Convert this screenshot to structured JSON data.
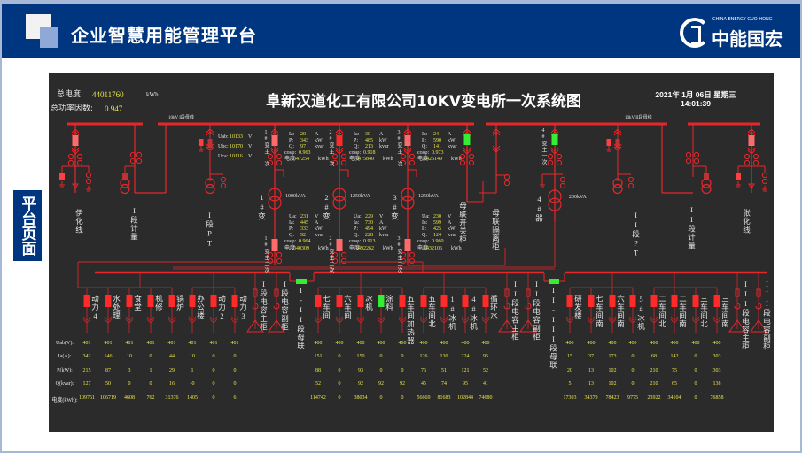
{
  "header": {
    "title": "企业智慧用能管理平台",
    "logo_text": "中能国宏",
    "logo_sub": "CHINA ENERGY GUO HONG"
  },
  "side_tab": {
    "label": "平台页面"
  },
  "colors": {
    "header_bg": "#003580",
    "panel_bg": "#2b2b2b",
    "bus": "#e8262a",
    "breaker_closed": "#ff2a2a",
    "breaker_open": "#33ee33",
    "value": "#e8e64a"
  },
  "panel": {
    "title": "阜新汉道化工有限公司10KV变电所一次系统图",
    "total_energy_label": "总电度:",
    "total_energy": "44011760",
    "total_energy_unit": "kWh",
    "pf_label": "总功率因数:",
    "pf": "0.947",
    "date": "2021年 1月 06日 星期三",
    "time": "14:01:39",
    "bus1_label": "10kV I段母线",
    "bus2_label": "10kV II段母线"
  },
  "units": {
    "v": "V",
    "a": "A",
    "kw": "kW",
    "kvar": "kvar",
    "kwh": "kWh"
  },
  "labels": {
    "ia": "Ia:",
    "ua": "Ua:",
    "p": "P:",
    "q": "Q:",
    "cos": "cosφ:",
    "energy": "电度"
  },
  "pt1": {
    "uab_label": "Uab:",
    "uab": "10133",
    "ubc_label": "Ubc:",
    "ubc": "10170",
    "uca_label": "Uca:",
    "uca": "10116"
  },
  "hv_columns": {
    "yihua": "伊化线",
    "meter1": "I段计量",
    "pt1": "I段PT",
    "tie_switch": "母联开关柜",
    "tie_isolator": "母联隔离柜",
    "t4": "4#器",
    "t4_hv": "4#变主一次",
    "t4_capacity": "200kVA",
    "pt2": "II段PT",
    "meter2": "II段计量",
    "zhanghua": "张化线"
  },
  "transformers": [
    {
      "name": "1#变",
      "capacity": "1000kVA",
      "hv_label": "1#变主一次",
      "lv_label": "1#变主二次",
      "hv_state": "closed",
      "hv": {
        "ia": "20",
        "p": "343",
        "q": "97",
        "cos": "0.963",
        "energy": "347254"
      },
      "lv": {
        "ua": "231",
        "ia": "445",
        "p": "333",
        "q": "92",
        "cos": "0.964",
        "energy": "340309"
      }
    },
    {
      "name": "2#变",
      "capacity": "1250kVA",
      "hv_label": "2#变主一次",
      "lv_label": "2#变主二次",
      "hv_state": "closed",
      "hv": {
        "ia": "30",
        "p": "485",
        "q": "213",
        "cos": "0.918",
        "energy": "475840"
      },
      "lv": {
        "ua": "229",
        "ia": "730",
        "p": "494",
        "q": "228",
        "cos": "0.913",
        "energy": "492262"
      }
    },
    {
      "name": "3#变",
      "capacity": "1250kVA",
      "hv_label": "3#变主一次",
      "lv_label": "3#变主二次",
      "hv_state": "closed",
      "hv": {
        "ia": "24",
        "p": "590",
        "q": "141",
        "cos": "0.973",
        "energy": "426149"
      },
      "lv": {
        "ua": "230",
        "ia": "599",
        "p": "425",
        "q": "124",
        "cos": "0.960",
        "energy": "432106"
      }
    }
  ],
  "table": {
    "row_labels": [
      "Uab(V):",
      "Ia(A):",
      "P(kW):",
      "Q(kvar):",
      "电度(kWh):"
    ]
  },
  "feeders": [
    {
      "label": "动力4",
      "state": "closed",
      "values": [
        "401",
        "342",
        "215",
        "127",
        "109751"
      ]
    },
    {
      "label": "水处理",
      "state": "closed",
      "values": [
        "401",
        "146",
        "87",
        "50",
        "106719"
      ]
    },
    {
      "label": "食堂",
      "state": "closed",
      "values": [
        "401",
        "10",
        "3",
        "0",
        "4608"
      ]
    },
    {
      "label": "机修",
      "state": "closed",
      "values": [
        "401",
        "0",
        "1",
        "0",
        "762"
      ]
    },
    {
      "label": "锅炉",
      "state": "closed",
      "values": [
        "401",
        "44",
        "29",
        "16",
        "31376"
      ]
    },
    {
      "label": "办公楼",
      "state": "closed",
      "values": [
        "401",
        "10",
        "1",
        "-0",
        "1405"
      ]
    },
    {
      "label": "动力2",
      "state": "closed",
      "values": [
        "401",
        "0",
        "0",
        "0",
        "0"
      ]
    },
    {
      "label": "动力3",
      "state": "closed",
      "values": [
        "401",
        "0",
        "0",
        "0",
        "6"
      ]
    },
    {
      "label": "七车间",
      "state": "closed",
      "values": [
        "400",
        "151",
        "88",
        "52",
        "114742"
      ]
    },
    {
      "label": "六车间",
      "state": "closed",
      "values": [
        "400",
        "0",
        "0",
        "0",
        "0"
      ]
    },
    {
      "label": "冰机",
      "state": "closed",
      "values": [
        "400",
        "150",
        "93",
        "92",
        "38034"
      ]
    },
    {
      "label": "涂料",
      "state": "open",
      "values": [
        "400",
        "0",
        "0",
        "92",
        "0"
      ]
    },
    {
      "label": "五车间加热器",
      "state": "closed",
      "values": [
        "400",
        "0",
        "0",
        "92",
        "0"
      ]
    },
    {
      "label": "五车间北",
      "state": "closed",
      "values": [
        "400",
        "126",
        "76",
        "45",
        "56669"
      ]
    },
    {
      "label": "1#冰机",
      "state": "closed",
      "values": [
        "400",
        "130",
        "51",
        "74",
        "81683"
      ]
    },
    {
      "label": "4#冰机",
      "state": "closed",
      "values": [
        "400",
        "224",
        "121",
        "95",
        "102844"
      ]
    },
    {
      "label": "循环水",
      "state": "closed",
      "values": [
        "400",
        "95",
        "52",
        "41",
        "74680"
      ]
    },
    {
      "label": "研发楼",
      "state": "closed",
      "values": [
        "400",
        "15",
        "20",
        "5",
        "17303"
      ]
    },
    {
      "label": "七车间南",
      "state": "closed",
      "values": [
        "400",
        "37",
        "13",
        "13",
        "34379"
      ]
    },
    {
      "label": "六车间南",
      "state": "closed",
      "values": [
        "400",
        "173",
        "102",
        "102",
        "78423"
      ]
    },
    {
      "label": "5#冰机",
      "state": "closed",
      "values": [
        "400",
        "0",
        "0",
        "0",
        "9775"
      ]
    },
    {
      "label": "二车间北",
      "state": "closed",
      "values": [
        "400",
        "68",
        "210",
        "210",
        "23922"
      ]
    },
    {
      "label": "二车间南",
      "state": "closed",
      "values": [
        "400",
        "142",
        "75",
        "65",
        "34104"
      ]
    },
    {
      "label": "三车间北",
      "state": "closed",
      "values": [
        "400",
        "0",
        "0",
        "0",
        "0"
      ]
    },
    {
      "label": "三车间南",
      "state": "closed",
      "values": [
        "400",
        "303",
        "303",
        "138",
        "76858"
      ]
    }
  ],
  "capacitors": [
    "I段电容主柜",
    "I段电容副柜",
    "II段电容主柜",
    "II段电容副柜",
    "III段电容主柜",
    "III段电容副柜"
  ],
  "bus_ties": [
    {
      "label": "I-II段母联",
      "state": "open"
    },
    {
      "label": "II-III段母联",
      "state": "open"
    }
  ]
}
